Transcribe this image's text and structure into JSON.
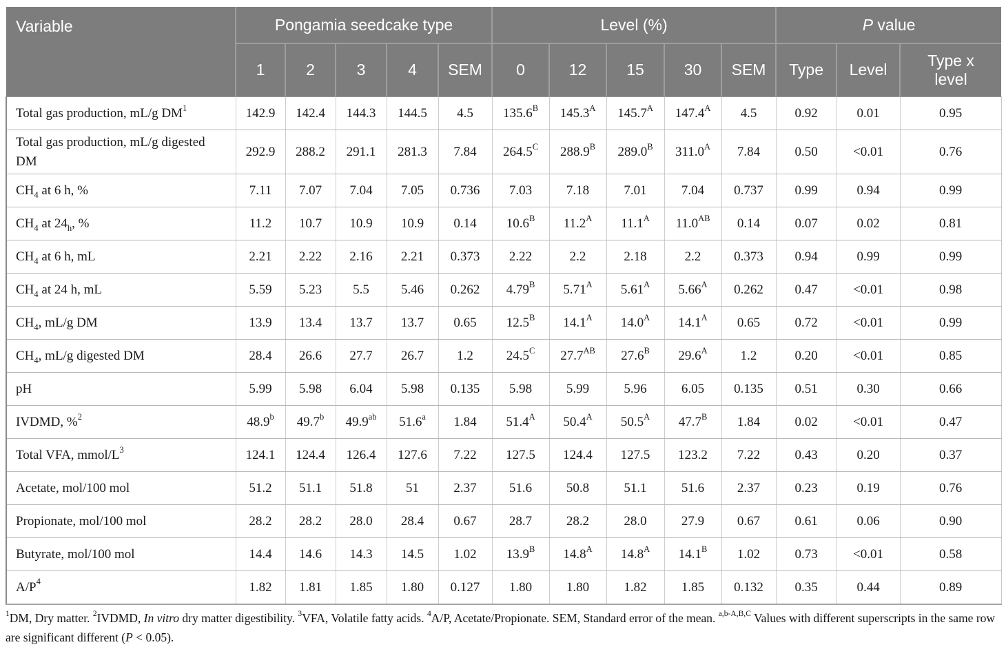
{
  "style": {
    "header_bg": "#7d7d7d",
    "header_text": "#ffffff",
    "body_text": "#1c1c1c",
    "grid_line": "#cdcdcd",
    "row_line": "#b7b7b7",
    "outer_left_line": "#8a8a8a"
  },
  "table": {
    "header": {
      "variable_label": "Variable",
      "groups": [
        {
          "label": "Pongamia seedcake type",
          "columns": [
            "1",
            "2",
            "3",
            "4",
            "SEM"
          ]
        },
        {
          "label": "Level (%)",
          "columns": [
            "0",
            "12",
            "15",
            "30",
            "SEM"
          ]
        },
        {
          "label": "*P* value",
          "columns": [
            "Type",
            "Level",
            "Type x level"
          ]
        }
      ]
    },
    "rows": [
      {
        "variable": "Total gas production, mL/g DM^{1}",
        "cells": [
          "142.9",
          "142.4",
          "144.3",
          "144.5",
          "4.5",
          "135.6^{B}",
          "145.3^{A}",
          "145.7^{A}",
          "147.4^{A}",
          "4.5",
          "0.92",
          "0.01",
          "0.95"
        ]
      },
      {
        "variable": "Total gas production, mL/g digested DM",
        "cells": [
          "292.9",
          "288.2",
          "291.1",
          "281.3",
          "7.84",
          "264.5^{C}",
          "288.9^{B}",
          "289.0^{B}",
          "311.0^{A}",
          "7.84",
          "0.50",
          "<0.01",
          "0.76"
        ]
      },
      {
        "variable": "CH_{4} at 6 h, %",
        "cells": [
          "7.11",
          "7.07",
          "7.04",
          "7.05",
          "0.736",
          "7.03",
          "7.18",
          "7.01",
          "7.04",
          "0.737",
          "0.99",
          "0.94",
          "0.99"
        ]
      },
      {
        "variable": "CH_{4} at 24_{h}, %",
        "cells": [
          "11.2",
          "10.7",
          "10.9",
          "10.9",
          "0.14",
          "10.6^{B}",
          "11.2^{A}",
          "11.1^{A}",
          "11.0^{AB}",
          "0.14",
          "0.07",
          "0.02",
          "0.81"
        ]
      },
      {
        "variable": "CH_{4} at 6 h, mL",
        "cells": [
          "2.21",
          "2.22",
          "2.16",
          "2.21",
          "0.373",
          "2.22",
          "2.2",
          "2.18",
          "2.2",
          "0.373",
          "0.94",
          "0.99",
          "0.99"
        ]
      },
      {
        "variable": "CH_{4} at 24 h, mL",
        "cells": [
          "5.59",
          "5.23",
          "5.5",
          "5.46",
          "0.262",
          "4.79^{B}",
          "5.71^{A}",
          "5.61^{A}",
          "5.66^{A}",
          "0.262",
          "0.47",
          "<0.01",
          "0.98"
        ]
      },
      {
        "variable": "CH_{4}, mL/g DM",
        "cells": [
          "13.9",
          "13.4",
          "13.7",
          "13.7",
          "0.65",
          "12.5^{B}",
          "14.1^{A}",
          "14.0^{A}",
          "14.1^{A}",
          "0.65",
          "0.72",
          "<0.01",
          "0.99"
        ]
      },
      {
        "variable": "CH_{4}, mL/g digested DM",
        "cells": [
          "28.4",
          "26.6",
          "27.7",
          "26.7",
          "1.2",
          "24.5^{C}",
          "27.7^{AB}",
          "27.6^{B}",
          "29.6^{A}",
          "1.2",
          "0.20",
          "<0.01",
          "0.85"
        ]
      },
      {
        "variable": "pH",
        "cells": [
          "5.99",
          "5.98",
          "6.04",
          "5.98",
          "0.135",
          "5.98",
          "5.99",
          "5.96",
          "6.05",
          "0.135",
          "0.51",
          "0.30",
          "0.66"
        ]
      },
      {
        "variable": "IVDMD, %^{2}",
        "cells": [
          "48.9^{b}",
          "49.7^{b}",
          "49.9^{ab}",
          "51.6^{a}",
          "1.84",
          "51.4^{A}",
          "50.4^{A}",
          "50.5^{A}",
          "47.7^{B}",
          "1.84",
          "0.02",
          "<0.01",
          "0.47"
        ]
      },
      {
        "variable": "Total VFA, mmol/L^{3}",
        "cells": [
          "124.1",
          "124.4",
          "126.4",
          "127.6",
          "7.22",
          "127.5",
          "124.4",
          "127.5",
          "123.2",
          "7.22",
          "0.43",
          "0.20",
          "0.37"
        ]
      },
      {
        "variable": "Acetate, mol/100 mol",
        "cells": [
          "51.2",
          "51.1",
          "51.8",
          "51",
          "2.37",
          "51.6",
          "50.8",
          "51.1",
          "51.6",
          "2.37",
          "0.23",
          "0.19",
          "0.76"
        ]
      },
      {
        "variable": "Propionate, mol/100 mol",
        "cells": [
          "28.2",
          "28.2",
          "28.0",
          "28.4",
          "0.67",
          "28.7",
          "28.2",
          "28.0",
          "27.9",
          "0.67",
          "0.61",
          "0.06",
          "0.90"
        ]
      },
      {
        "variable": "Butyrate, mol/100 mol",
        "cells": [
          "14.4",
          "14.6",
          "14.3",
          "14.5",
          "1.02",
          "13.9^{B}",
          "14.8^{A}",
          "14.8^{A}",
          "14.1^{B}",
          "1.02",
          "0.73",
          "<0.01",
          "0.58"
        ]
      },
      {
        "variable": "A/P^{4}",
        "cells": [
          "1.82",
          "1.81",
          "1.85",
          "1.80",
          "0.127",
          "1.80",
          "1.80",
          "1.82",
          "1.85",
          "0.132",
          "0.35",
          "0.44",
          "0.89"
        ]
      }
    ]
  },
  "footnote": "^{1}DM, Dry matter. ^{2}IVDMD, *In vitro* dry matter digestibility. ^{3}VFA, Volatile fatty acids. ^{4}A/P, Acetate/Propionate. SEM, Standard error of the mean. ^{a,b-A,B,C} Values with different superscripts in the same row are significant different (*P* < 0.05)."
}
